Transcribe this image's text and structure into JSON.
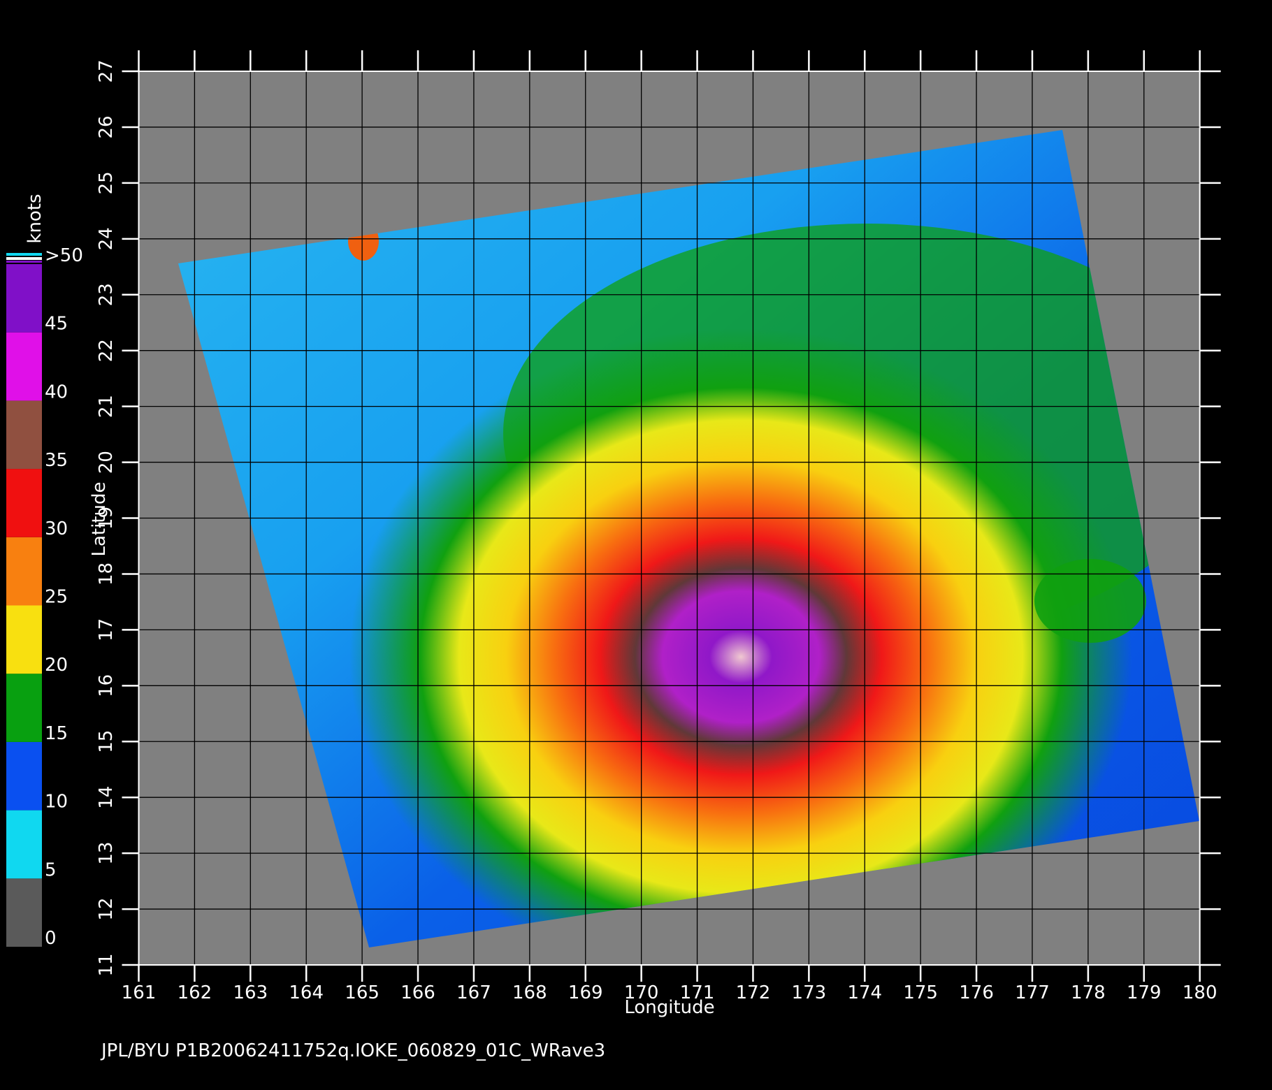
{
  "chart_data": {
    "type": "heatmap",
    "xlabel": "Longitude",
    "ylabel": "Latitude",
    "xlim": [
      161,
      180
    ],
    "ylim": [
      11,
      27
    ],
    "xticks": [
      161,
      162,
      163,
      164,
      165,
      166,
      167,
      168,
      169,
      170,
      171,
      172,
      173,
      174,
      175,
      176,
      177,
      178,
      179,
      180
    ],
    "yticks": [
      11,
      12,
      13,
      14,
      15,
      16,
      17,
      18,
      19,
      20,
      21,
      22,
      23,
      24,
      25,
      26,
      27
    ],
    "grid": true,
    "colorbar": {
      "label": "knots",
      "ticks": [
        0,
        5,
        10,
        15,
        20,
        25,
        30,
        35,
        40,
        45,
        {
          "value": 50,
          "label": ">50"
        }
      ],
      "colors": [
        "#5a5a5a",
        "#10d8f0",
        "#0a50f0",
        "#08a010",
        "#f8e010",
        "#f88010",
        "#f01010",
        "#905040",
        "#e010e8",
        "#8010c8"
      ]
    },
    "footer": "JPL/BYU  P1B20062411752q.IOKE_060829_01C_WRave3"
  }
}
